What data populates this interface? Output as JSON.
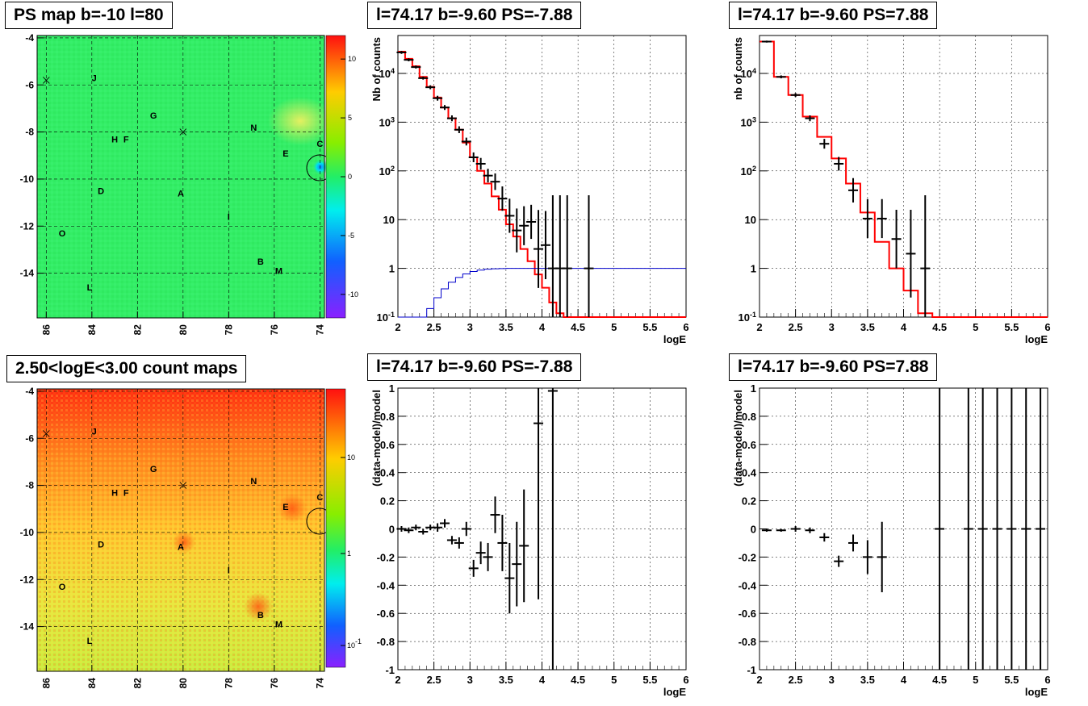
{
  "titles": {
    "ps_map": "PS map b=-10 l=80",
    "count_map": "2.50<logE<3.00 count maps",
    "spec_neg": "l=74.17 b=-9.60 PS=-7.88",
    "spec_pos": "l=74.17 b=-9.60 PS=7.88",
    "resid_neg": "l=74.17 b=-9.60 PS=-7.88",
    "resid_pos": "l=74.17 b=-9.60 PS=7.88"
  },
  "map_axes": {
    "x_ticks": [
      "86",
      "84",
      "82",
      "80",
      "78",
      "76",
      "74"
    ],
    "y_ticks": [
      "-4",
      "-6",
      "-8",
      "-10",
      "-12",
      "-14"
    ]
  },
  "map_sources": [
    {
      "label": "J",
      "l": 83.9,
      "b": -5.7
    },
    {
      "label": "G",
      "l": 81.3,
      "b": -7.3
    },
    {
      "label": "N",
      "l": 76.9,
      "b": -7.8
    },
    {
      "label": "H",
      "l": 83.0,
      "b": -8.3
    },
    {
      "label": "F",
      "l": 82.5,
      "b": -8.3
    },
    {
      "label": "E",
      "l": 75.5,
      "b": -8.9
    },
    {
      "label": "C",
      "l": 74.0,
      "b": -8.5
    },
    {
      "label": "D",
      "l": 83.6,
      "b": -10.5
    },
    {
      "label": "A",
      "l": 80.1,
      "b": -10.6
    },
    {
      "label": "O",
      "l": 85.3,
      "b": -12.3
    },
    {
      "label": "I",
      "l": 78.0,
      "b": -11.6
    },
    {
      "label": "B",
      "l": 76.6,
      "b": -13.5
    },
    {
      "label": "M",
      "l": 75.8,
      "b": -13.9
    },
    {
      "label": "L",
      "l": 84.1,
      "b": -14.6
    }
  ],
  "ps_colorbar_ticks": [
    "10",
    "5",
    "0",
    "-5",
    "-10"
  ],
  "count_colorbar_ticks": [
    "10",
    "1",
    "10^-1"
  ],
  "chart_data": [
    {
      "type": "line",
      "title": "l=74.17 b=-9.60 PS=-7.88",
      "xlabel": "logE",
      "ylabel": "Nb of counts",
      "log_y": true,
      "xlim": [
        2,
        6
      ],
      "ylim": [
        0.1,
        60000
      ],
      "x_ticks": [
        "2",
        "2.5",
        "3",
        "3.5",
        "4",
        "4.5",
        "5",
        "5.5",
        "6"
      ],
      "y_ticks": [
        "10^-1",
        "1",
        "10",
        "10^2",
        "10^3",
        "10^4"
      ],
      "series": [
        {
          "color": "#ff0000",
          "edges": [
            2.0,
            2.1,
            2.2,
            2.3,
            2.4,
            2.5,
            2.6,
            2.7,
            2.8,
            2.9,
            3.0,
            3.1,
            3.2,
            3.3,
            3.4,
            3.5,
            3.6,
            3.7,
            3.8,
            3.9,
            4.0,
            4.1,
            4.2,
            4.3,
            4.4,
            6.0
          ],
          "values": [
            28000,
            20000,
            14000,
            8500,
            5300,
            3200,
            2000,
            1200,
            700,
            380,
            190,
            100,
            55,
            30,
            16,
            8,
            4.5,
            2.5,
            1.4,
            0.75,
            0.4,
            0.2,
            0.12,
            0.1,
            0.1
          ]
        },
        {
          "color": "#0000cc",
          "edges": [
            2.0,
            2.1,
            2.2,
            2.3,
            2.4,
            2.5,
            2.6,
            2.7,
            2.8,
            2.9,
            3.0,
            3.1,
            3.2,
            3.3,
            3.4,
            3.5,
            3.6,
            3.7,
            3.8,
            3.9,
            4.0,
            4.1,
            6.0
          ],
          "values": [
            0.1,
            0.1,
            0.1,
            0.1,
            0.15,
            0.25,
            0.38,
            0.52,
            0.65,
            0.77,
            0.86,
            0.92,
            0.96,
            0.98,
            0.99,
            1.0,
            1.0,
            1.0,
            1.0,
            1.0,
            1.0,
            1.0
          ]
        }
      ],
      "points": [
        {
          "x": 2.05,
          "y": 27000,
          "ey": 0.03
        },
        {
          "x": 2.15,
          "y": 19000,
          "ey": 0.03
        },
        {
          "x": 2.25,
          "y": 13500,
          "ey": 0.03
        },
        {
          "x": 2.35,
          "y": 8000,
          "ey": 0.03
        },
        {
          "x": 2.45,
          "y": 5200,
          "ey": 0.04
        },
        {
          "x": 2.55,
          "y": 3100,
          "ey": 0.05
        },
        {
          "x": 2.65,
          "y": 2000,
          "ey": 0.05
        },
        {
          "x": 2.75,
          "y": 1200,
          "ey": 0.06
        },
        {
          "x": 2.85,
          "y": 700,
          "ey": 0.07
        },
        {
          "x": 2.95,
          "y": 400,
          "ey": 0.08
        },
        {
          "x": 3.05,
          "y": 190,
          "ey": 0.1
        },
        {
          "x": 3.15,
          "y": 140,
          "ey": 0.12
        },
        {
          "x": 3.25,
          "y": 80,
          "ey": 0.14
        },
        {
          "x": 3.35,
          "y": 60,
          "ey": 0.17
        },
        {
          "x": 3.45,
          "y": 27,
          "ey": 0.25
        },
        {
          "x": 3.55,
          "y": 12,
          "ey": 0.35
        },
        {
          "x": 3.65,
          "y": 6,
          "ey": 0.45
        },
        {
          "x": 3.75,
          "y": 7.5,
          "ey": 0.4
        },
        {
          "x": 3.85,
          "y": 9,
          "ey": 0.35
        },
        {
          "x": 3.95,
          "y": 2.5,
          "ey": 0.8
        },
        {
          "x": 4.05,
          "y": 3,
          "ey": 0.7
        },
        {
          "x": 4.15,
          "y": 1,
          "ey": 1.5
        },
        {
          "x": 4.25,
          "y": 1,
          "ey": 1.5
        },
        {
          "x": 4.35,
          "y": 1,
          "ey": 1.5
        },
        {
          "x": 4.65,
          "y": 1,
          "ey": 1.5
        }
      ]
    },
    {
      "type": "line",
      "title": "l=74.17 b=-9.60 PS=7.88",
      "xlabel": "logE",
      "ylabel": "nb of counts",
      "log_y": true,
      "xlim": [
        2,
        6
      ],
      "ylim": [
        0.1,
        60000
      ],
      "x_ticks": [
        "2",
        "2.5",
        "3",
        "3.5",
        "4",
        "4.5",
        "5",
        "5.5",
        "6"
      ],
      "y_ticks": [
        "10^-1",
        "1",
        "10",
        "10^2",
        "10^3",
        "10^4"
      ],
      "series": [
        {
          "color": "#ff0000",
          "edges": [
            2.0,
            2.2,
            2.4,
            2.6,
            2.8,
            3.0,
            3.2,
            3.4,
            3.6,
            3.8,
            4.0,
            4.2,
            4.4,
            4.6,
            4.8,
            5.0,
            6.0
          ],
          "values": [
            45000,
            8500,
            3600,
            1300,
            500,
            180,
            55,
            14,
            3.5,
            1.0,
            0.35,
            0.12,
            0.1,
            0.1,
            0.1,
            0.1
          ]
        }
      ],
      "points": [
        {
          "x": 2.1,
          "y": 45000,
          "ey": 0.02
        },
        {
          "x": 2.3,
          "y": 8500,
          "ey": 0.03
        },
        {
          "x": 2.5,
          "y": 3600,
          "ey": 0.04
        },
        {
          "x": 2.7,
          "y": 1200,
          "ey": 0.06
        },
        {
          "x": 2.9,
          "y": 360,
          "ey": 0.1
        },
        {
          "x": 3.1,
          "y": 140,
          "ey": 0.14
        },
        {
          "x": 3.3,
          "y": 40,
          "ey": 0.25
        },
        {
          "x": 3.5,
          "y": 10.5,
          "ey": 0.4
        },
        {
          "x": 3.7,
          "y": 10.5,
          "ey": 0.4
        },
        {
          "x": 3.9,
          "y": 4,
          "ey": 0.6
        },
        {
          "x": 4.1,
          "y": 2,
          "ey": 0.9
        },
        {
          "x": 4.3,
          "y": 1,
          "ey": 1.5
        }
      ]
    },
    {
      "type": "scatter",
      "title": "l=74.17 b=-9.60 PS=-7.88",
      "xlabel": "logE",
      "ylabel": "(data-model)/model",
      "log_y": false,
      "xlim": [
        2,
        6
      ],
      "ylim": [
        -1,
        1
      ],
      "x_ticks": [
        "2",
        "2.5",
        "3",
        "3.5",
        "4",
        "4.5",
        "5",
        "5.5",
        "6"
      ],
      "y_ticks": [
        "-1",
        "-0.8",
        "-0.6",
        "-0.4",
        "-0.2",
        "0",
        "0.2",
        "0.4",
        "0.6",
        "0.8",
        "1"
      ],
      "points": [
        {
          "x": 2.05,
          "y": 0.0,
          "ey": 0.02
        },
        {
          "x": 2.15,
          "y": -0.01,
          "ey": 0.02
        },
        {
          "x": 2.25,
          "y": 0.01,
          "ey": 0.02
        },
        {
          "x": 2.35,
          "y": -0.02,
          "ey": 0.02
        },
        {
          "x": 2.45,
          "y": 0.01,
          "ey": 0.02
        },
        {
          "x": 2.55,
          "y": 0.01,
          "ey": 0.03
        },
        {
          "x": 2.65,
          "y": 0.04,
          "ey": 0.03
        },
        {
          "x": 2.75,
          "y": -0.08,
          "ey": 0.03
        },
        {
          "x": 2.85,
          "y": -0.1,
          "ey": 0.04
        },
        {
          "x": 2.95,
          "y": 0.0,
          "ey": 0.05
        },
        {
          "x": 3.05,
          "y": -0.28,
          "ey": 0.06
        },
        {
          "x": 3.15,
          "y": -0.17,
          "ey": 0.08
        },
        {
          "x": 3.25,
          "y": -0.2,
          "ey": 0.1
        },
        {
          "x": 3.35,
          "y": 0.1,
          "ey": 0.13
        },
        {
          "x": 3.45,
          "y": -0.1,
          "ey": 0.2
        },
        {
          "x": 3.55,
          "y": -0.35,
          "ey": 0.25
        },
        {
          "x": 3.65,
          "y": -0.25,
          "ey": 0.3
        },
        {
          "x": 3.75,
          "y": -0.12,
          "ey": 0.4
        },
        {
          "x": 3.95,
          "y": 0.75,
          "ey": 1.25
        },
        {
          "x": 4.15,
          "y": 0.98,
          "ey": 2.0
        }
      ]
    },
    {
      "type": "scatter",
      "title": "l=74.17 b=-9.60 PS=7.88",
      "xlabel": "logE",
      "ylabel": "(data-model)/model",
      "log_y": false,
      "xlim": [
        2,
        6
      ],
      "ylim": [
        -1,
        1
      ],
      "x_ticks": [
        "2",
        "2.5",
        "3",
        "3.5",
        "4",
        "4.5",
        "5",
        "5.5",
        "6"
      ],
      "y_ticks": [
        "-1",
        "-0.8",
        "-0.6",
        "-0.4",
        "-0.2",
        "0",
        "0.2",
        "0.4",
        "0.6",
        "0.8",
        "1"
      ],
      "points": [
        {
          "x": 2.1,
          "y": -0.01,
          "ey": 0.01
        },
        {
          "x": 2.3,
          "y": -0.01,
          "ey": 0.01
        },
        {
          "x": 2.5,
          "y": 0.0,
          "ey": 0.02
        },
        {
          "x": 2.7,
          "y": -0.01,
          "ey": 0.02
        },
        {
          "x": 2.9,
          "y": -0.06,
          "ey": 0.03
        },
        {
          "x": 3.1,
          "y": -0.23,
          "ey": 0.04
        },
        {
          "x": 3.3,
          "y": -0.1,
          "ey": 0.06
        },
        {
          "x": 3.5,
          "y": -0.2,
          "ey": 0.12
        },
        {
          "x": 3.7,
          "y": -0.2,
          "ey": 0.25
        },
        {
          "x": 4.5,
          "y": 0,
          "ey": 2.0
        },
        {
          "x": 4.9,
          "y": 0,
          "ey": 2.0
        },
        {
          "x": 5.1,
          "y": 0,
          "ey": 2.0
        },
        {
          "x": 5.3,
          "y": 0,
          "ey": 2.0
        },
        {
          "x": 5.5,
          "y": 0,
          "ey": 2.0
        },
        {
          "x": 5.7,
          "y": 0,
          "ey": 2.0
        },
        {
          "x": 5.9,
          "y": 0,
          "ey": 2.0
        }
      ]
    }
  ]
}
